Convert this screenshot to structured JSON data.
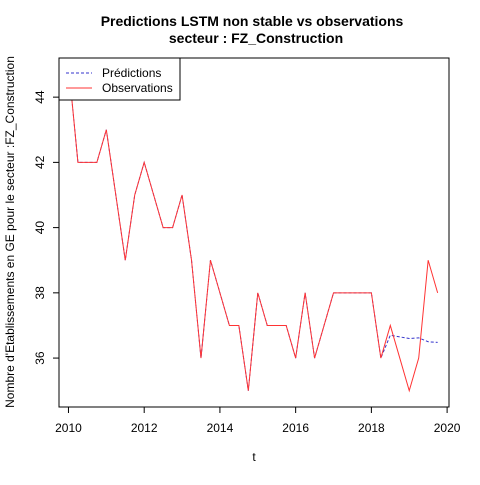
{
  "chart_data": {
    "type": "line",
    "title": "Predictions LSTM non stable vs observations",
    "subtitle": "secteur : FZ_Construction",
    "xlabel": "t",
    "ylabel": "Nombre d'Etablissements en GE pour le secteur :FZ_Construction",
    "xlim": [
      2009.75,
      2020.05
    ],
    "ylim": [
      34.5,
      45.2
    ],
    "xticks": [
      2010,
      2012,
      2014,
      2016,
      2018,
      2020
    ],
    "yticks": [
      36,
      38,
      40,
      42,
      44
    ],
    "grid": false,
    "legend_position": "top-left",
    "series": [
      {
        "name": "Prédictions",
        "color": "#3333cc",
        "style": "dashed",
        "x": [
          2010.0,
          2010.25,
          2010.5,
          2010.75,
          2011.0,
          2011.25,
          2011.5,
          2011.75,
          2012.0,
          2012.25,
          2012.5,
          2012.75,
          2013.0,
          2013.25,
          2013.5,
          2013.75,
          2014.0,
          2014.25,
          2014.5,
          2014.75,
          2015.0,
          2015.25,
          2015.5,
          2015.75,
          2016.0,
          2016.25,
          2016.5,
          2016.75,
          2017.0,
          2017.25,
          2017.5,
          2017.75,
          2018.0,
          2018.25,
          2018.5,
          2018.75,
          2019.0,
          2019.25,
          2019.5,
          2019.75
        ],
        "y": [
          45,
          42,
          42,
          42,
          43,
          41,
          39,
          41,
          42,
          41,
          40,
          40,
          41,
          39,
          36,
          39,
          38,
          37,
          37,
          35,
          38,
          37,
          37,
          37,
          36,
          38,
          36,
          37,
          38,
          38,
          38,
          38,
          38,
          36,
          36.7,
          36.65,
          36.6,
          36.62,
          36.5,
          36.48
        ]
      },
      {
        "name": "Observations",
        "color": "#ff3333",
        "style": "solid",
        "x": [
          2010.0,
          2010.25,
          2010.5,
          2010.75,
          2011.0,
          2011.25,
          2011.5,
          2011.75,
          2012.0,
          2012.25,
          2012.5,
          2012.75,
          2013.0,
          2013.25,
          2013.5,
          2013.75,
          2014.0,
          2014.25,
          2014.5,
          2014.75,
          2015.0,
          2015.25,
          2015.5,
          2015.75,
          2016.0,
          2016.25,
          2016.5,
          2016.75,
          2017.0,
          2017.25,
          2017.5,
          2017.75,
          2018.0,
          2018.25,
          2018.5,
          2018.75,
          2019.0,
          2019.25,
          2019.5,
          2019.75
        ],
        "y": [
          45,
          42,
          42,
          42,
          43,
          41,
          39,
          41,
          42,
          41,
          40,
          40,
          41,
          39,
          36,
          39,
          38,
          37,
          37,
          35,
          38,
          37,
          37,
          37,
          36,
          38,
          36,
          37,
          38,
          38,
          38,
          38,
          38,
          36,
          37,
          36,
          35,
          36,
          39,
          38
        ]
      }
    ]
  }
}
